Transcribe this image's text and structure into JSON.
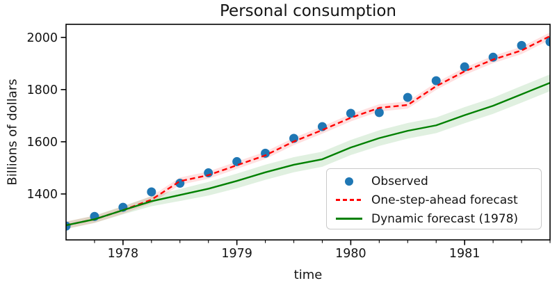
{
  "chart_data": {
    "type": "line",
    "title": "Personal consumption",
    "xlabel": "time",
    "ylabel": "Billions of dollars",
    "xlim": [
      1977.5,
      1981.75
    ],
    "ylim": [
      1224,
      2050
    ],
    "xticks": [
      1978,
      1979,
      1980,
      1981
    ],
    "yticks": [
      1400,
      1600,
      1800,
      2000
    ],
    "minor_xtick_interval": 0.25,
    "grid": false,
    "legend_position": "lower right",
    "x": [
      1977.5,
      1977.75,
      1978.0,
      1978.25,
      1978.5,
      1978.75,
      1979.0,
      1979.25,
      1979.5,
      1979.75,
      1980.0,
      1980.25,
      1980.5,
      1980.75,
      1981.0,
      1981.25,
      1981.5,
      1981.75
    ],
    "series": [
      {
        "name": "Observed",
        "plot_type": "scatter",
        "color": "#1f77b4",
        "marker_radius": 6.5,
        "values": [
          1277,
          1314,
          1349,
          1408,
          1441,
          1481,
          1524,
          1556,
          1613,
          1658,
          1709,
          1712,
          1770,
          1834,
          1887,
          1924,
          1969,
          1983
        ]
      },
      {
        "name": "One-step-ahead forecast",
        "plot_type": "line",
        "line_style": "dashed",
        "color": "#ff0000",
        "band_color": "rgba(255,0,0,0.12)",
        "band_halfwidths": [
          14,
          14,
          14,
          14,
          14,
          14,
          14,
          14,
          14,
          14,
          14,
          14,
          14,
          14,
          14,
          14,
          14,
          14
        ],
        "values": [
          1280,
          1303,
          1338,
          1378,
          1449,
          1472,
          1510,
          1548,
          1601,
          1645,
          1692,
          1730,
          1741,
          1813,
          1870,
          1915,
          1950,
          2005
        ]
      },
      {
        "name": "Dynamic forecast (1978)",
        "plot_type": "line",
        "line_style": "solid",
        "color": "#008000",
        "band_color": "rgba(0,128,0,0.12)",
        "band_halfwidths": [
          14,
          14,
          16,
          19,
          23,
          26,
          28,
          29,
          29,
          29,
          29,
          30,
          30,
          30,
          31,
          31,
          32,
          32
        ],
        "values": [
          1280,
          1303,
          1338,
          1372,
          1396,
          1420,
          1450,
          1483,
          1512,
          1533,
          1578,
          1614,
          1642,
          1663,
          1702,
          1738,
          1782,
          1826
        ]
      }
    ]
  },
  "legend": {
    "items": [
      {
        "label": "Observed",
        "marker": "dot",
        "color": "#1f77b4"
      },
      {
        "label": "One-step-ahead forecast",
        "marker": "dashed-line",
        "color": "#ff0000"
      },
      {
        "label": "Dynamic forecast (1978)",
        "marker": "solid-line",
        "color": "#008000"
      }
    ]
  }
}
